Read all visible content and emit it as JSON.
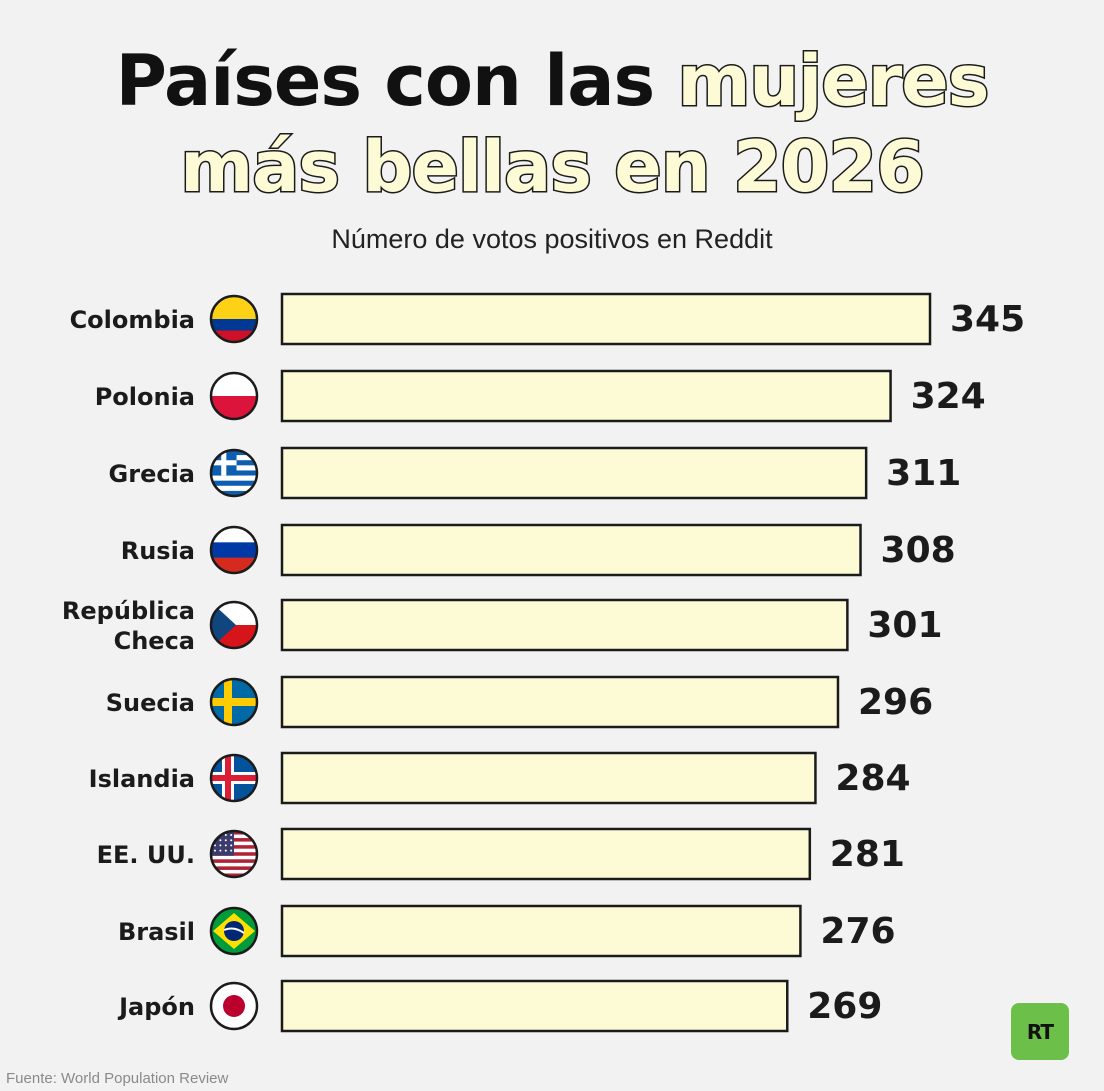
{
  "title": {
    "line1_plain": "Países con las",
    "line1_highlight": "mujeres",
    "line2_highlight": "más bellas en 2026"
  },
  "subtitle": "Número de votos positivos en Reddit",
  "footer": "Fuente: World Population Review",
  "logo_text": "RT",
  "colors": {
    "background": "#f2f2f2",
    "bar_fill": "#fdfbd6",
    "bar_stroke": "#1b1b1b",
    "logo_green": "#6cc04a"
  },
  "chart_data": {
    "type": "bar",
    "orientation": "horizontal",
    "title": "Países con las mujeres más bellas en 2026",
    "subtitle": "Número de votos positivos en Reddit",
    "categories": [
      "Colombia",
      "Polonia",
      "Grecia",
      "Rusia",
      "República Checa",
      "Suecia",
      "Islandia",
      "EE. UU.",
      "Brasil",
      "Japón"
    ],
    "values": [
      345,
      324,
      311,
      308,
      301,
      296,
      284,
      281,
      276,
      269
    ],
    "flags": [
      "colombia-flag-icon",
      "poland-flag-icon",
      "greece-flag-icon",
      "russia-flag-icon",
      "czech-flag-icon",
      "sweden-flag-icon",
      "iceland-flag-icon",
      "usa-flag-icon",
      "brazil-flag-icon",
      "japan-flag-icon"
    ],
    "grid": false,
    "legend": "none"
  }
}
